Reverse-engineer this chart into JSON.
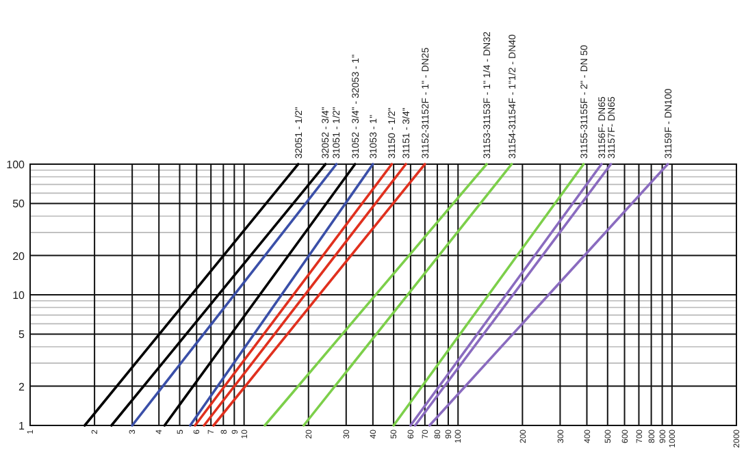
{
  "chart_data": {
    "type": "line",
    "log": "xy",
    "grid": true,
    "marker": "none",
    "line_style": "solid",
    "xlim": [
      1,
      2000
    ],
    "xticks": [
      1,
      2,
      3,
      4,
      5,
      6,
      7,
      8,
      9,
      10,
      20,
      30,
      40,
      50,
      60,
      70,
      80,
      90,
      100,
      200,
      300,
      400,
      500,
      600,
      700,
      800,
      900,
      1000,
      2000
    ],
    "ylim": [
      1,
      100
    ],
    "yticks": [
      1,
      2,
      {
        "value": 3,
        "label": null
      },
      {
        "value": 4,
        "label": null
      },
      5,
      {
        "value": 6,
        "label": null
      },
      {
        "value": 7,
        "label": null
      },
      {
        "value": 8,
        "label": null
      },
      {
        "value": 9,
        "label": null
      },
      10,
      20,
      {
        "value": 30,
        "label": null
      },
      {
        "value": 40,
        "label": null
      },
      50,
      {
        "value": 60,
        "label": null
      },
      {
        "value": 70,
        "label": null
      },
      {
        "value": 80,
        "label": null
      },
      {
        "value": 90,
        "label": null
      },
      100
    ],
    "series": [
      {
        "name": "32051 - 1/2\"",
        "color": "#000000",
        "x": [
          1.8,
          17.9
        ],
        "values": [
          1,
          100
        ]
      },
      {
        "name": "32052 - 3/4\"",
        "color": "#000000",
        "x": [
          2.4,
          24
        ],
        "values": [
          1,
          100
        ]
      },
      {
        "name": "31051 - 1/2\"",
        "color": "#3a4fa8",
        "x": [
          3,
          27
        ],
        "values": [
          1,
          100
        ]
      },
      {
        "name": "31052 - 3/4\" - 32053 - 1\"",
        "color": "#000000",
        "x": [
          4.25,
          33
        ],
        "values": [
          1,
          100
        ]
      },
      {
        "name": "31053 - 1\"",
        "color": "#3a4fa8",
        "x": [
          5.6,
          40
        ],
        "values": [
          1,
          100
        ]
      },
      {
        "name": "31150 - 1/2\"",
        "color": "#e0301e",
        "x": [
          5.9,
          49
        ],
        "values": [
          1,
          100
        ]
      },
      {
        "name": "31151 - 3/4\"",
        "color": "#e0301e",
        "x": [
          6.5,
          57
        ],
        "values": [
          1,
          100
        ]
      },
      {
        "name": "31152-31152F - 1\" - DN25",
        "color": "#e0301e",
        "x": [
          7.2,
          70
        ],
        "values": [
          1,
          100
        ]
      },
      {
        "name": "31153-31153F - 1\" 1/4 - DN32",
        "color": "#7ccf4a",
        "x": [
          12.5,
          136
        ],
        "values": [
          1,
          100
        ]
      },
      {
        "name": "31154-31154F - 1\"1/2 - DN40",
        "color": "#7ccf4a",
        "x": [
          19,
          178
        ],
        "values": [
          1,
          100
        ]
      },
      {
        "name": "31155-31155F - 2\" - DN 50",
        "color": "#7ccf4a",
        "x": [
          50,
          386
        ],
        "values": [
          1,
          100
        ]
      },
      {
        "name": "31156F- DN65",
        "color": "#8a6bbf",
        "x": [
          60,
          468
        ],
        "values": [
          1,
          100
        ]
      },
      {
        "name": "31157F- DN65",
        "color": "#8a6bbf",
        "x": [
          63,
          518
        ],
        "values": [
          1,
          100
        ]
      },
      {
        "name": "31159F - DN100",
        "color": "#8a6bbf",
        "x": [
          73.6,
          955
        ],
        "values": [
          1,
          100
        ]
      }
    ]
  }
}
